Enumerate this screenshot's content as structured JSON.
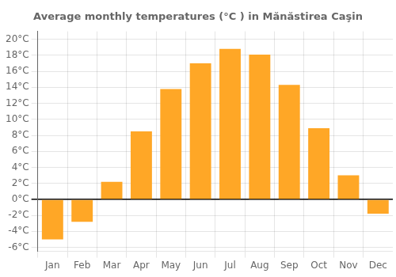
{
  "chart_data": {
    "type": "bar",
    "title": "Average monthly temperatures (°C ) in Mănăstirea Caşin",
    "categories": [
      "Jan",
      "Feb",
      "Mar",
      "Apr",
      "May",
      "Jun",
      "Jul",
      "Aug",
      "Sep",
      "Oct",
      "Nov",
      "Dec"
    ],
    "values": [
      -5.0,
      -2.8,
      2.2,
      8.5,
      13.8,
      17.0,
      18.8,
      18.1,
      14.3,
      8.9,
      3.0,
      -1.8
    ],
    "color": "#FFA726",
    "ylim": [
      -6.5,
      21.0
    ],
    "yticks": [
      {
        "value": -6,
        "label": "-6°C"
      },
      {
        "value": -4,
        "label": "-4°C"
      },
      {
        "value": -2,
        "label": "-2°C"
      },
      {
        "value": 0,
        "label": "0°C"
      },
      {
        "value": 2,
        "label": "2°C"
      },
      {
        "value": 4,
        "label": "4°C"
      },
      {
        "value": 6,
        "label": "6°C"
      },
      {
        "value": 8,
        "label": "8°C"
      },
      {
        "value": 10,
        "label": "10°C"
      },
      {
        "value": 12,
        "label": "12°C"
      },
      {
        "value": 14,
        "label": "14°C"
      },
      {
        "value": 16,
        "label": "16°C"
      },
      {
        "value": 18,
        "label": "18°C"
      },
      {
        "value": 20,
        "label": "20°C"
      }
    ],
    "grid": true
  }
}
